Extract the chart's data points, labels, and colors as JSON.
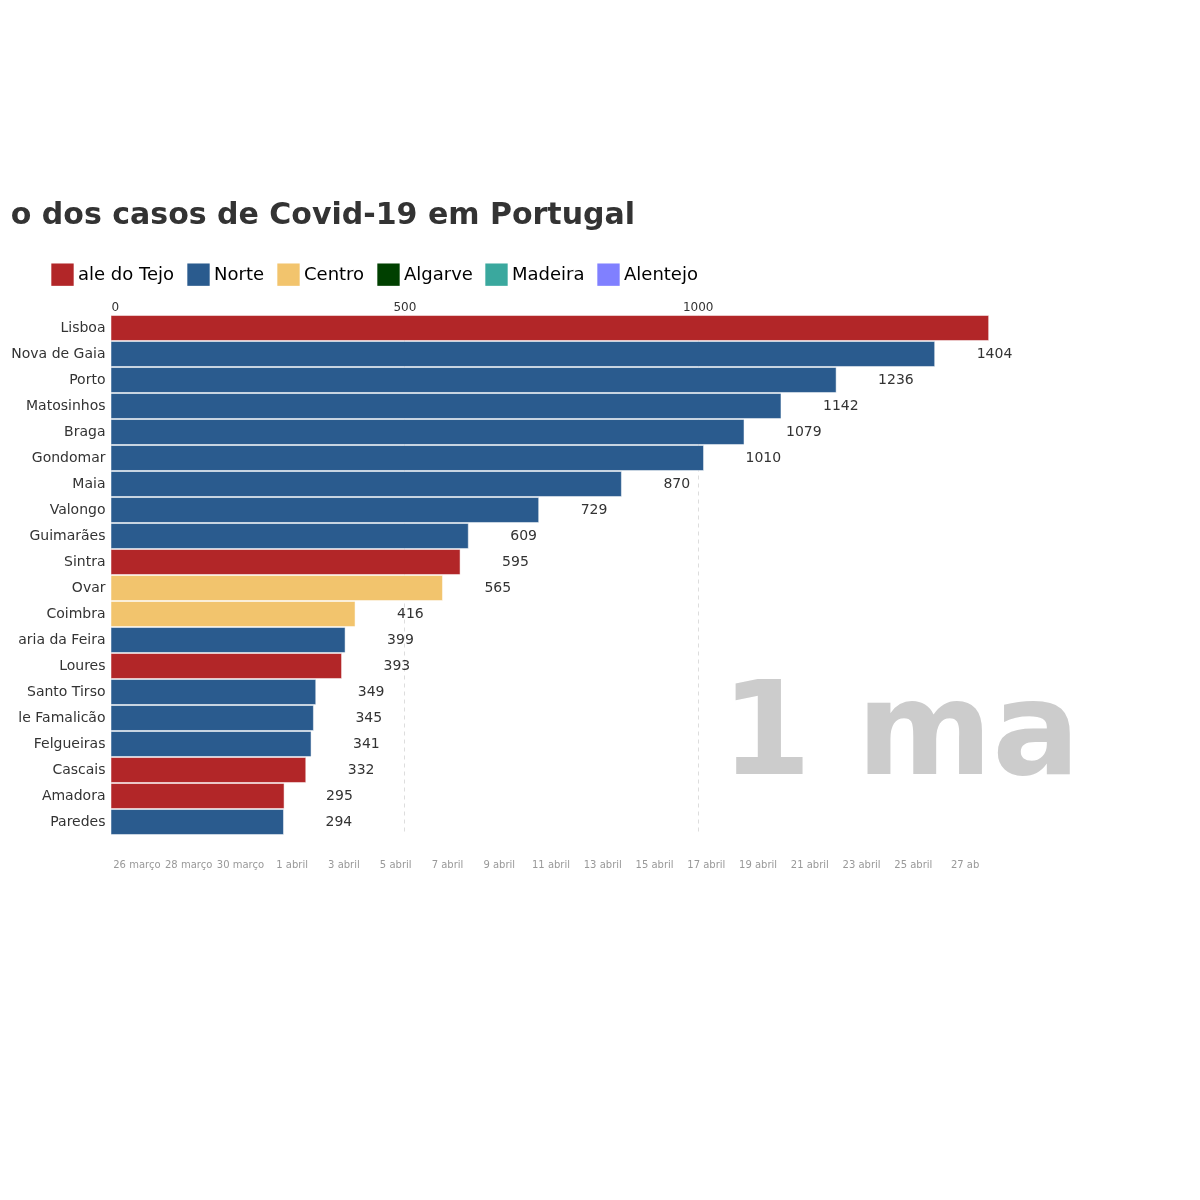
{
  "chart_data": {
    "type": "bar",
    "orientation": "horizontal",
    "title": "o dos casos de Covid-19 em Portugal",
    "categories": [
      "Lisboa",
      "Nova de Gaia",
      "Porto",
      "Matosinhos",
      "Braga",
      "Gondomar",
      "Maia",
      "Valongo",
      "Guimarães",
      "Sintra",
      "Ovar",
      "Coimbra",
      "aria da Feira",
      "Loures",
      "Santo Tirso",
      "le Famalicão",
      "Felgueiras",
      "Cascais",
      "Amadora",
      "Paredes"
    ],
    "series": [
      {
        "name": "ale do Tejo",
        "color": "#b22628",
        "values": [
          1496,
          null,
          null,
          null,
          null,
          null,
          null,
          null,
          null,
          595,
          null,
          null,
          null,
          393,
          null,
          null,
          null,
          332,
          295,
          null
        ],
        "value_labels": [
          null,
          null,
          null,
          null,
          null,
          null,
          null,
          null,
          null,
          "595",
          null,
          null,
          null,
          "393",
          null,
          null,
          null,
          "332",
          "295",
          null
        ]
      },
      {
        "name": "Norte",
        "color": "#2a5b8e",
        "values": [
          null,
          1404,
          1236,
          1142,
          1079,
          1010,
          870,
          729,
          609,
          null,
          null,
          null,
          399,
          null,
          349,
          345,
          341,
          null,
          null,
          294
        ],
        "value_labels": [
          null,
          "1404",
          "1236",
          "1142",
          "1079",
          "1010",
          "870",
          "729",
          "609",
          null,
          null,
          null,
          "399",
          null,
          "349",
          "345",
          "341",
          null,
          null,
          "294"
        ]
      },
      {
        "name": "Centro",
        "color": "#f2c46d",
        "values": [
          null,
          null,
          null,
          null,
          null,
          null,
          null,
          null,
          null,
          null,
          565,
          416,
          null,
          null,
          null,
          null,
          null,
          null,
          null,
          null
        ],
        "value_labels": [
          null,
          null,
          null,
          null,
          null,
          null,
          null,
          null,
          null,
          null,
          "565",
          "416",
          null,
          null,
          null,
          null,
          null,
          null,
          null,
          null
        ]
      },
      {
        "name": "Algarve",
        "color": "#004000",
        "values": [
          null,
          null,
          null,
          null,
          null,
          null,
          null,
          null,
          null,
          null,
          null,
          null,
          null,
          null,
          null,
          null,
          null,
          null,
          null,
          null
        ]
      },
      {
        "name": "Madeira",
        "color": "#3aa89e",
        "values": [
          null,
          null,
          null,
          null,
          null,
          null,
          null,
          null,
          null,
          null,
          null,
          null,
          null,
          null,
          null,
          null,
          null,
          null,
          null,
          null
        ]
      },
      {
        "name": "Alentejo",
        "color": "#8080ff",
        "values": [
          null,
          null,
          null,
          null,
          null,
          null,
          null,
          null,
          null,
          null,
          null,
          null,
          null,
          null,
          null,
          null,
          null,
          null,
          null,
          null
        ]
      }
    ],
    "xlim": [
      0,
      1500
    ],
    "xticks": [
      0,
      500,
      1000
    ],
    "grid": "x",
    "legend": "top",
    "annotations": [
      "1 ma",
      "26 março",
      "28 março",
      "30 março",
      "1 abril",
      "3 abril",
      "5 abril",
      "7 abril",
      "9 abril",
      "11 abril",
      "13 abril",
      "15 abril",
      "17 abril",
      "19 abril",
      "21 abril",
      "23 abril",
      "25 abril",
      "27 ab"
    ]
  }
}
